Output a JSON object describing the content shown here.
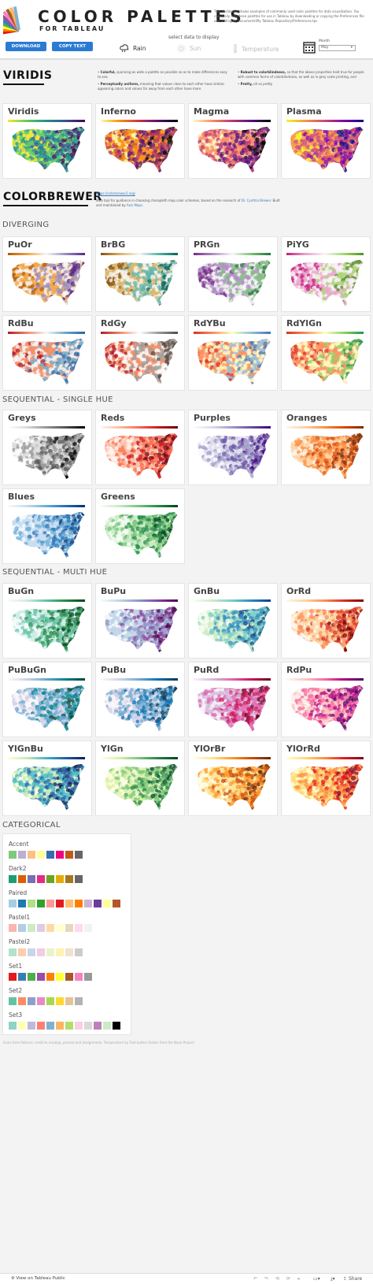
{
  "header": {
    "title": "COLOR PALETTES",
    "subtitle": "FOR TABLEAU",
    "intro": "This dashboard shows examples of commonly used color palettes for data visualization. You can easily add these palettes for use in Tableau by downloading or copying the Preferences file and adding to_Documents\\My Tableau Repository\\Preferences.tps",
    "download_label": "DOWNLOAD",
    "copy_label": "COPY TEXT",
    "select_label": "select data to display",
    "options": [
      "Rain",
      "Sun",
      "Temperature"
    ],
    "month_label": "Month",
    "month_value": "May"
  },
  "viridis": {
    "heading": "VIRIDIS",
    "b1_bold": "Colorful,",
    "b1": " spanning as wide a palette as possible so as to make differences easy to see,",
    "b2_bold": "Perceptually uniform,",
    "b2": " meaning that values close to each other have similar-appearing colors and values far away from each other have more",
    "b3_bold": "Robust to colorblindness,",
    "b3": " so that the above properties hold true for people with common forms of colorblindness, as well as in grey scale printing, and",
    "b4_bold": "Pretty,",
    "b4": " oh so pretty"
  },
  "colorbrewer": {
    "heading": "COLORBREWER",
    "url": "https://colorbrewer2.org/",
    "desc_a": "Web tool for guidance in choosing choropleth map color schemes, based on the research of ",
    "desc_link1": "Dr. Cynthia Brewer",
    "desc_b": ". Built and maintained by ",
    "desc_link2": "Axis Maps",
    "desc_c": "."
  },
  "sections": {
    "diverging": "DIVERGING",
    "single": "SEQUENTIAL - SINGLE HUE",
    "multi": "SEQUENTIAL - MULTI HUE",
    "categorical": "CATEGORICAL"
  },
  "palettes": [
    {
      "name": "Viridis",
      "colors": [
        "#fde725",
        "#5ec962",
        "#21918c",
        "#3b528b",
        "#440154"
      ]
    },
    {
      "name": "Inferno",
      "colors": [
        "#fcffa4",
        "#f98e09",
        "#bc3754",
        "#57106e",
        "#000004"
      ]
    },
    {
      "name": "Magma",
      "colors": [
        "#fcfdbf",
        "#fc8961",
        "#b73779",
        "#51127c",
        "#000004"
      ]
    },
    {
      "name": "Plasma",
      "colors": [
        "#f0f921",
        "#f89540",
        "#cc4778",
        "#7e03a8",
        "#0d0887"
      ]
    },
    {
      "name": "PuOr",
      "colors": [
        "#b35806",
        "#f1a340",
        "#f7f7f7",
        "#998ec3",
        "#542788"
      ]
    },
    {
      "name": "BrBG",
      "colors": [
        "#8c510a",
        "#d8b365",
        "#f5f5f5",
        "#5ab4ac",
        "#01665e"
      ]
    },
    {
      "name": "PRGn",
      "colors": [
        "#762a83",
        "#af8dc3",
        "#f7f7f7",
        "#7fbf7b",
        "#1b7837"
      ]
    },
    {
      "name": "PiYG",
      "colors": [
        "#c51b7d",
        "#e9a3c9",
        "#f7f7f7",
        "#a1d76a",
        "#4d9221"
      ]
    },
    {
      "name": "RdBu",
      "colors": [
        "#b2182b",
        "#ef8a62",
        "#f7f7f7",
        "#67a9cf",
        "#2166ac"
      ]
    },
    {
      "name": "RdGy",
      "colors": [
        "#b2182b",
        "#ef8a62",
        "#ffffff",
        "#999999",
        "#4d4d4d"
      ]
    },
    {
      "name": "RdYBu",
      "colors": [
        "#d73027",
        "#fc8d59",
        "#ffffbf",
        "#91bfdb",
        "#4575b4"
      ]
    },
    {
      "name": "RdYlGn",
      "colors": [
        "#d73027",
        "#fc8d59",
        "#ffffbf",
        "#91cf60",
        "#1a9850"
      ]
    },
    {
      "name": "Greys",
      "colors": [
        "#ffffff",
        "#d9d9d9",
        "#969696",
        "#525252",
        "#000000"
      ]
    },
    {
      "name": "Reds",
      "colors": [
        "#fff5f0",
        "#fcbba1",
        "#fb6a4a",
        "#cb181d",
        "#67000d"
      ]
    },
    {
      "name": "Purples",
      "colors": [
        "#fcfbfd",
        "#dadaeb",
        "#9e9ac8",
        "#6a51a3",
        "#3f007d"
      ]
    },
    {
      "name": "Oranges",
      "colors": [
        "#fff5eb",
        "#fdd0a2",
        "#fd8d3c",
        "#d94801",
        "#7f2704"
      ]
    },
    {
      "name": "Blues",
      "colors": [
        "#f7fbff",
        "#c6dbef",
        "#6baed6",
        "#2171b5",
        "#08306b"
      ]
    },
    {
      "name": "Greens",
      "colors": [
        "#f7fcf5",
        "#c7e9c0",
        "#74c476",
        "#238b45",
        "#00441b"
      ]
    },
    {
      "name": "BuGn",
      "colors": [
        "#f7fcfd",
        "#ccece6",
        "#66c2a4",
        "#238b45",
        "#00441b"
      ]
    },
    {
      "name": "BuPu",
      "colors": [
        "#f7fcfd",
        "#bfd3e6",
        "#8c96c6",
        "#88419d",
        "#4d004b"
      ]
    },
    {
      "name": "GnBu",
      "colors": [
        "#f7fcf0",
        "#ccebc5",
        "#7bccc4",
        "#2b8cbe",
        "#084081"
      ]
    },
    {
      "name": "OrRd",
      "colors": [
        "#fff7ec",
        "#fdd49e",
        "#fc8d59",
        "#d7301f",
        "#7f0000"
      ]
    },
    {
      "name": "PuBuGn",
      "colors": [
        "#fff7fb",
        "#d0d1e6",
        "#67a9cf",
        "#02818a",
        "#014636"
      ]
    },
    {
      "name": "PuBu",
      "colors": [
        "#fff7fb",
        "#d0d1e6",
        "#74a9cf",
        "#0570b0",
        "#023858"
      ]
    },
    {
      "name": "PuRd",
      "colors": [
        "#f7f4f9",
        "#d4b9da",
        "#df65b0",
        "#ce1256",
        "#67001f"
      ]
    },
    {
      "name": "RdPu",
      "colors": [
        "#fff7f3",
        "#fcc5c0",
        "#f768a1",
        "#ae017e",
        "#49006a"
      ]
    },
    {
      "name": "YlGnBu",
      "colors": [
        "#ffffd9",
        "#c7e9b4",
        "#41b6c4",
        "#225ea8",
        "#081d58"
      ]
    },
    {
      "name": "YlGn",
      "colors": [
        "#ffffe5",
        "#d9f0a3",
        "#78c679",
        "#238443",
        "#004529"
      ]
    },
    {
      "name": "YlOrBr",
      "colors": [
        "#ffffe5",
        "#fee391",
        "#fe9929",
        "#cc4c02",
        "#662506"
      ]
    },
    {
      "name": "YlOrRd",
      "colors": [
        "#ffffcc",
        "#fed976",
        "#fd8d3c",
        "#e31a1c",
        "#800026"
      ]
    }
  ],
  "categorical": [
    {
      "name": "Accent",
      "colors": [
        "#7fc97f",
        "#beaed4",
        "#fdc086",
        "#ffff99",
        "#386cb0",
        "#f0027f",
        "#bf5b17",
        "#666666"
      ]
    },
    {
      "name": "Dark2",
      "colors": [
        "#1b9e77",
        "#d95f02",
        "#7570b3",
        "#e7298a",
        "#66a61e",
        "#e6ab02",
        "#a6761d",
        "#666666"
      ]
    },
    {
      "name": "Paired",
      "colors": [
        "#a6cee3",
        "#1f78b4",
        "#b2df8a",
        "#33a02c",
        "#fb9a99",
        "#e31a1c",
        "#fdbf6f",
        "#ff7f00",
        "#cab2d6",
        "#6a3d9a",
        "#ffff99",
        "#b15928"
      ]
    },
    {
      "name": "Pastel1",
      "colors": [
        "#fbb4ae",
        "#b3cde3",
        "#ccebc5",
        "#decbe4",
        "#fed9a6",
        "#ffffcc",
        "#e5d8bd",
        "#fddaec",
        "#f2f2f2"
      ]
    },
    {
      "name": "Pastel2",
      "colors": [
        "#b3e2cd",
        "#fdcdac",
        "#cbd5e8",
        "#f4cae4",
        "#e6f5c9",
        "#fff2ae",
        "#f1e2cc",
        "#cccccc"
      ]
    },
    {
      "name": "Set1",
      "colors": [
        "#e41a1c",
        "#377eb8",
        "#4daf4a",
        "#984ea3",
        "#ff7f00",
        "#ffff33",
        "#a65628",
        "#f781bf",
        "#999999"
      ]
    },
    {
      "name": "Set2",
      "colors": [
        "#66c2a5",
        "#fc8d62",
        "#8da0cb",
        "#e78ac3",
        "#a6d854",
        "#ffd92f",
        "#e5c494",
        "#b3b3b3"
      ]
    },
    {
      "name": "Set3",
      "colors": [
        "#8dd3c7",
        "#ffffb3",
        "#bebada",
        "#fb8072",
        "#80b1d3",
        "#fdb462",
        "#b3de69",
        "#fccde5",
        "#d9d9d9",
        "#bc80bd",
        "#ccebc5",
        "#000000"
      ]
    }
  ],
  "footer": "Icons from flaticon; credit to eucalyp, pemcol and designmodo. Temperature by Text button Fasten from the Noun Project.",
  "bottom_bar": {
    "label": "View on Tableau Public",
    "share": "Share"
  }
}
